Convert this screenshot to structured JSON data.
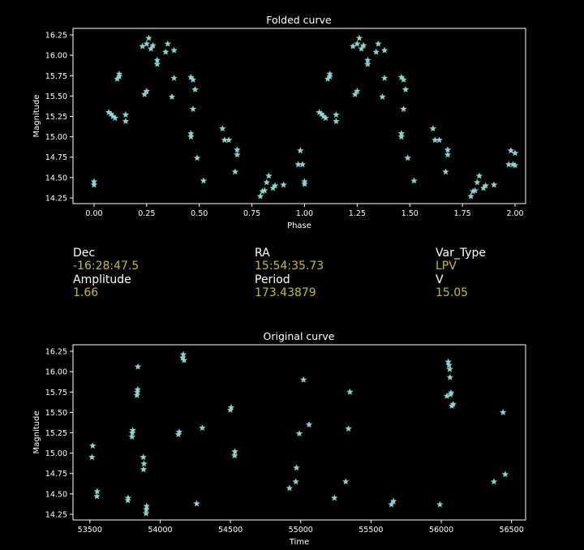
{
  "colors": {
    "background": "#000000",
    "marker": "#8dd3c7",
    "axis": "#ffffff",
    "value_text": "#bfbf2a"
  },
  "info": [
    {
      "key": "Dec",
      "value": "-16:28:47.5"
    },
    {
      "key": "RA",
      "value": "15:54:35.73"
    },
    {
      "key": "Var_Type",
      "value": "LPV"
    },
    {
      "key": "Amplitude",
      "value": "1.66"
    },
    {
      "key": "Period",
      "value": "173.43879"
    },
    {
      "key": "V",
      "value": "15.05"
    }
  ],
  "chart_data": [
    {
      "type": "scatter",
      "title": "Folded curve",
      "xlabel": "Phase",
      "ylabel": "Magnitude",
      "xlim": [
        -0.1,
        2.05
      ],
      "ylim": [
        16.33,
        14.18
      ],
      "y_inverted": true,
      "xticks": [
        "0.00",
        "0.25",
        "0.50",
        "0.75",
        "1.00",
        "1.25",
        "1.50",
        "1.75",
        "2.00"
      ],
      "xtick_values": [
        0,
        0.25,
        0.5,
        0.75,
        1.0,
        1.25,
        1.5,
        1.75,
        2.0
      ],
      "yticks": [
        "14.25",
        "14.50",
        "14.75",
        "15.00",
        "15.25",
        "15.50",
        "15.75",
        "16.00",
        "16.25"
      ],
      "ytick_values": [
        14.25,
        14.5,
        14.75,
        15.0,
        15.25,
        15.5,
        15.75,
        16.0,
        16.25
      ],
      "marker": "star",
      "x": [
        0.0,
        0.0,
        0.07,
        0.08,
        0.09,
        0.1,
        0.11,
        0.12,
        0.12,
        0.15,
        0.15,
        0.23,
        0.24,
        0.25,
        0.25,
        0.26,
        0.27,
        0.28,
        0.3,
        0.3,
        0.34,
        0.35,
        0.37,
        0.38,
        0.38,
        0.46,
        0.46,
        0.46,
        0.47,
        0.47,
        0.48,
        0.49,
        0.52,
        0.61,
        0.62,
        0.64,
        0.67,
        0.68,
        0.68,
        0.79,
        0.8,
        0.81,
        0.82,
        0.83,
        0.85,
        0.86,
        0.9,
        0.97,
        0.98,
        0.99,
        1.0,
        1.0,
        1.07,
        1.08,
        1.09,
        1.1,
        1.11,
        1.12,
        1.12,
        1.15,
        1.15,
        1.23,
        1.24,
        1.25,
        1.25,
        1.26,
        1.27,
        1.28,
        1.3,
        1.3,
        1.34,
        1.35,
        1.37,
        1.38,
        1.38,
        1.46,
        1.46,
        1.46,
        1.47,
        1.47,
        1.48,
        1.49,
        1.52,
        1.61,
        1.62,
        1.64,
        1.67,
        1.68,
        1.68,
        1.79,
        1.8,
        1.81,
        1.82,
        1.83,
        1.85,
        1.86,
        1.9,
        1.97,
        1.98,
        1.99,
        2.0,
        2.0
      ],
      "y": [
        14.41,
        14.45,
        15.3,
        15.28,
        15.25,
        15.23,
        15.71,
        15.74,
        15.77,
        15.19,
        15.27,
        16.11,
        15.52,
        15.56,
        16.14,
        16.21,
        16.08,
        16.12,
        15.89,
        15.94,
        16.04,
        16.14,
        15.49,
        16.06,
        15.72,
        15.73,
        15.04,
        15.0,
        15.7,
        15.34,
        15.58,
        14.74,
        14.46,
        15.1,
        14.96,
        14.96,
        14.57,
        14.78,
        14.84,
        14.27,
        14.33,
        14.34,
        14.44,
        14.52,
        14.37,
        14.4,
        14.41,
        14.66,
        14.83,
        14.66,
        14.42,
        14.45,
        15.3,
        15.28,
        15.25,
        15.23,
        15.71,
        15.74,
        15.77,
        15.19,
        15.27,
        16.11,
        15.52,
        15.56,
        16.14,
        16.21,
        16.08,
        16.12,
        15.89,
        15.94,
        16.04,
        16.14,
        15.49,
        16.06,
        15.72,
        15.73,
        15.04,
        15.0,
        15.7,
        15.34,
        15.58,
        14.74,
        14.46,
        15.1,
        14.96,
        14.96,
        14.57,
        14.78,
        14.84,
        14.27,
        14.33,
        14.34,
        14.44,
        14.52,
        14.37,
        14.4,
        14.41,
        14.66,
        14.83,
        14.66,
        14.65,
        14.8
      ]
    },
    {
      "type": "scatter",
      "title": "Original curve",
      "xlabel": "Time",
      "ylabel": "Magnitude",
      "xlim": [
        53380,
        56600
      ],
      "ylim": [
        16.33,
        14.18
      ],
      "y_inverted": true,
      "xticks": [
        "53500",
        "54000",
        "54500",
        "55000",
        "55500",
        "56000",
        "56500"
      ],
      "xtick_values": [
        53500,
        54000,
        54500,
        55000,
        55500,
        56000,
        56500
      ],
      "yticks": [
        "14.25",
        "14.50",
        "14.75",
        "15.00",
        "15.25",
        "15.50",
        "15.75",
        "16.00",
        "16.25"
      ],
      "ytick_values": [
        14.25,
        14.5,
        14.75,
        15.0,
        15.25,
        15.5,
        15.75,
        16.0,
        16.25
      ],
      "marker": "star",
      "x": [
        53515,
        53520,
        53550,
        53552,
        53770,
        53772,
        53800,
        53802,
        53805,
        53835,
        53838,
        53840,
        53842,
        53880,
        53882,
        53885,
        53900,
        53902,
        53904,
        54130,
        54135,
        54160,
        54165,
        54170,
        54260,
        54300,
        54500,
        54505,
        54530,
        54532,
        54920,
        54965,
        54970,
        54990,
        55020,
        55060,
        55240,
        55320,
        55340,
        55350,
        55645,
        55660,
        55990,
        56040,
        56050,
        56055,
        56060,
        56062,
        56065,
        56070,
        56075,
        56085,
        56375,
        56440,
        56455
      ],
      "y": [
        14.95,
        15.09,
        14.47,
        14.53,
        14.42,
        14.45,
        15.2,
        15.25,
        15.28,
        15.71,
        15.75,
        15.78,
        16.06,
        14.95,
        14.8,
        14.87,
        14.26,
        14.31,
        14.35,
        15.23,
        15.26,
        16.17,
        16.21,
        16.14,
        14.38,
        15.31,
        15.53,
        15.56,
        14.97,
        15.02,
        14.57,
        14.65,
        14.82,
        15.24,
        15.9,
        15.35,
        14.45,
        14.65,
        15.3,
        15.75,
        14.37,
        14.41,
        14.37,
        15.7,
        16.12,
        16.08,
        16.03,
        15.93,
        15.72,
        15.74,
        15.58,
        15.6,
        14.65,
        15.5,
        14.74
      ]
    }
  ]
}
